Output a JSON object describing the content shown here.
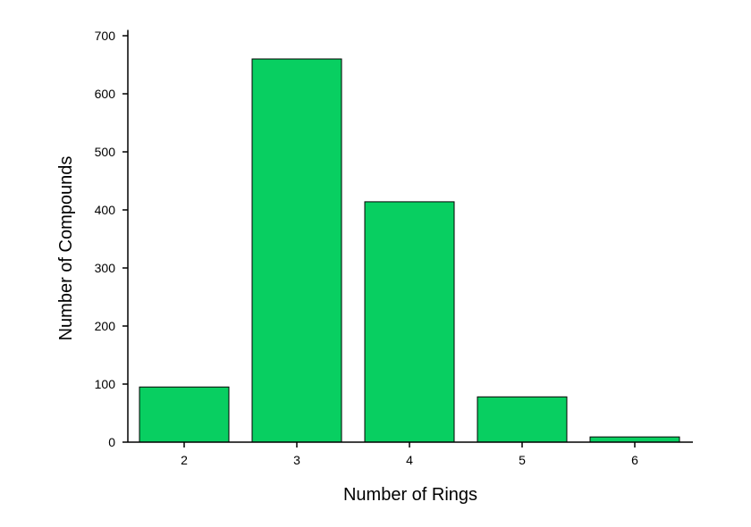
{
  "chart_data": {
    "type": "bar",
    "x_label": "Number of Rings",
    "y_label": "Number of Compounds",
    "categories": [
      "2",
      "3",
      "4",
      "5",
      "6"
    ],
    "values": [
      95,
      660,
      414,
      78,
      9
    ],
    "color": "#08cf61",
    "ylim": [
      0,
      710
    ],
    "yticks": [
      0,
      100,
      200,
      300,
      400,
      500,
      600,
      700
    ],
    "grid": false
  }
}
